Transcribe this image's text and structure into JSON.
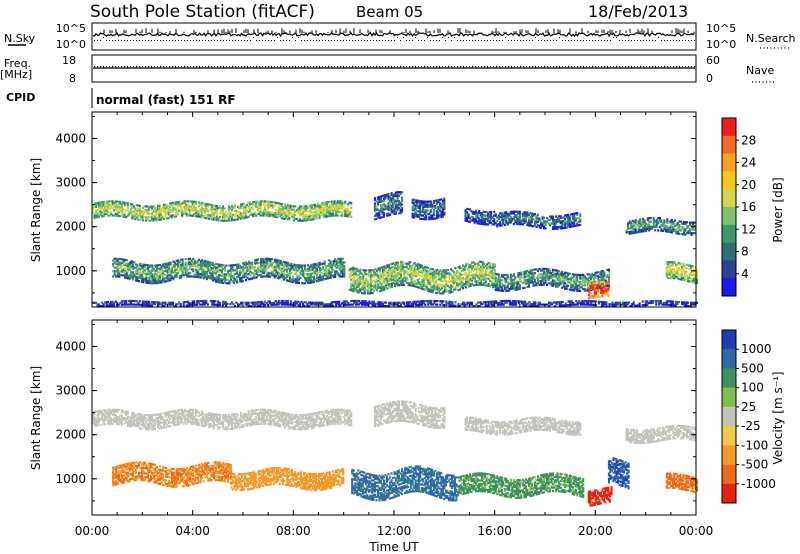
{
  "header": {
    "title": "South Pole Station (fitACF)",
    "beam": "Beam 05",
    "date": "18/Feb/2013"
  },
  "status_panels": {
    "nsky_label": "N.Sky",
    "nsky_ticks": [
      "10^5",
      "10^0"
    ],
    "nsearch_label": "N.Search",
    "nsearch_ticks": [
      "10^5",
      "10^0"
    ],
    "freq_label_1": "Freq.",
    "freq_label_2": "[MHz]",
    "freq_ticks": [
      "18",
      "8"
    ],
    "nave_label": "Nave",
    "nave_ticks": [
      "60",
      "0"
    ],
    "cpid_label": "CPID",
    "cpid_value": "normal (fast) 151 RF"
  },
  "colorbars": {
    "power": {
      "label": "Power [dB]",
      "ticks": [
        "28",
        "24",
        "20",
        "16",
        "12",
        "8",
        "4"
      ],
      "colors": [
        "#ee1f1f",
        "#f26a28",
        "#f7a21e",
        "#f4c91c",
        "#d2d84a",
        "#7fc36a",
        "#3d9a6c",
        "#2f6f7c",
        "#2e3f9c",
        "#1a1af0"
      ]
    },
    "velocity": {
      "label": "Velocity [m s⁻¹]",
      "ticks": [
        "1000",
        "500",
        "100",
        "25",
        "-25",
        "-100",
        "-500",
        "-1000"
      ],
      "colors": [
        "#1c3fb0",
        "#2f6aa8",
        "#3f8f60",
        "#7cc24a",
        "#c4c4bc",
        "#f4c84a",
        "#f39a2a",
        "#ef6a14",
        "#e82010"
      ]
    }
  },
  "chart_data": [
    {
      "type": "heatmap",
      "title": "South Pole Station (fitACF)",
      "subtitle": "Beam 05",
      "panel": "power",
      "xlabel": "Time UT",
      "ylabel": "Slant Range [km]",
      "x_ticks": [
        "00:00",
        "04:00",
        "08:00",
        "12:00",
        "16:00",
        "20:00",
        "00:00"
      ],
      "y_ticks": [
        "4000",
        "3000",
        "2000",
        "1000"
      ],
      "xlim": [
        0,
        24
      ],
      "ylim": [
        180,
        4600
      ],
      "colorbar": "Power [dB]",
      "bands": [
        {
          "t0": 0.0,
          "t1": 10.3,
          "r_center": 2350,
          "r_half": 170,
          "level": 15
        },
        {
          "t0": 11.2,
          "t1": 12.3,
          "r_center": 2450,
          "r_half": 250,
          "level": 8
        },
        {
          "t0": 12.7,
          "t1": 14.0,
          "r_center": 2450,
          "r_half": 220,
          "level": 7
        },
        {
          "t0": 14.8,
          "t1": 16.0,
          "r_center": 2250,
          "r_half": 160,
          "level": 6
        },
        {
          "t0": 16.0,
          "t1": 19.4,
          "r_center": 2150,
          "r_half": 160,
          "level": 7
        },
        {
          "t0": 21.2,
          "t1": 23.9,
          "r_center": 2000,
          "r_half": 150,
          "level": 10
        },
        {
          "t0": 0.8,
          "t1": 10.0,
          "r_center": 1000,
          "r_half": 220,
          "level": 11
        },
        {
          "t0": 10.2,
          "t1": 16.0,
          "r_center": 850,
          "r_half": 280,
          "level": 14
        },
        {
          "t0": 16.0,
          "t1": 20.5,
          "r_center": 800,
          "r_half": 200,
          "level": 10
        },
        {
          "t0": 19.7,
          "t1": 20.5,
          "r_center": 520,
          "r_half": 170,
          "level": 27
        },
        {
          "t0": 22.8,
          "t1": 24.0,
          "r_center": 950,
          "r_half": 200,
          "level": 16
        },
        {
          "t0": 0.0,
          "t1": 24.0,
          "r_center": 260,
          "r_half": 60,
          "level": 4
        }
      ]
    },
    {
      "type": "heatmap",
      "panel": "velocity",
      "xlabel": "Time UT",
      "ylabel": "Slant Range [km]",
      "x_ticks": [
        "00:00",
        "04:00",
        "08:00",
        "12:00",
        "16:00",
        "20:00",
        "00:00"
      ],
      "y_ticks": [
        "4000",
        "3000",
        "2000",
        "1000"
      ],
      "xlim": [
        0,
        24
      ],
      "ylim": [
        180,
        4600
      ],
      "colorbar": "Velocity [m s⁻¹]",
      "bands": [
        {
          "t0": 0.0,
          "t1": 10.3,
          "r_center": 2350,
          "r_half": 180,
          "level": 0
        },
        {
          "t0": 11.2,
          "t1": 14.0,
          "r_center": 2450,
          "r_half": 230,
          "level": 0
        },
        {
          "t0": 14.8,
          "t1": 19.4,
          "r_center": 2200,
          "r_half": 160,
          "level": 0
        },
        {
          "t0": 21.2,
          "t1": 23.9,
          "r_center": 2000,
          "r_half": 150,
          "level": 0
        },
        {
          "t0": 0.8,
          "t1": 5.5,
          "r_center": 1100,
          "r_half": 220,
          "level": -300
        },
        {
          "t0": 5.5,
          "t1": 10.0,
          "r_center": 1000,
          "r_half": 200,
          "level": -120
        },
        {
          "t0": 10.3,
          "t1": 14.5,
          "r_center": 900,
          "r_half": 300,
          "level": 400
        },
        {
          "t0": 14.5,
          "t1": 19.5,
          "r_center": 850,
          "r_half": 220,
          "level": 90
        },
        {
          "t0": 19.7,
          "t1": 20.6,
          "r_center": 600,
          "r_half": 180,
          "level": -1100
        },
        {
          "t0": 20.5,
          "t1": 21.3,
          "r_center": 1100,
          "r_half": 300,
          "level": 700
        },
        {
          "t0": 22.8,
          "t1": 24.0,
          "r_center": 900,
          "r_half": 180,
          "level": -400
        }
      ]
    }
  ]
}
